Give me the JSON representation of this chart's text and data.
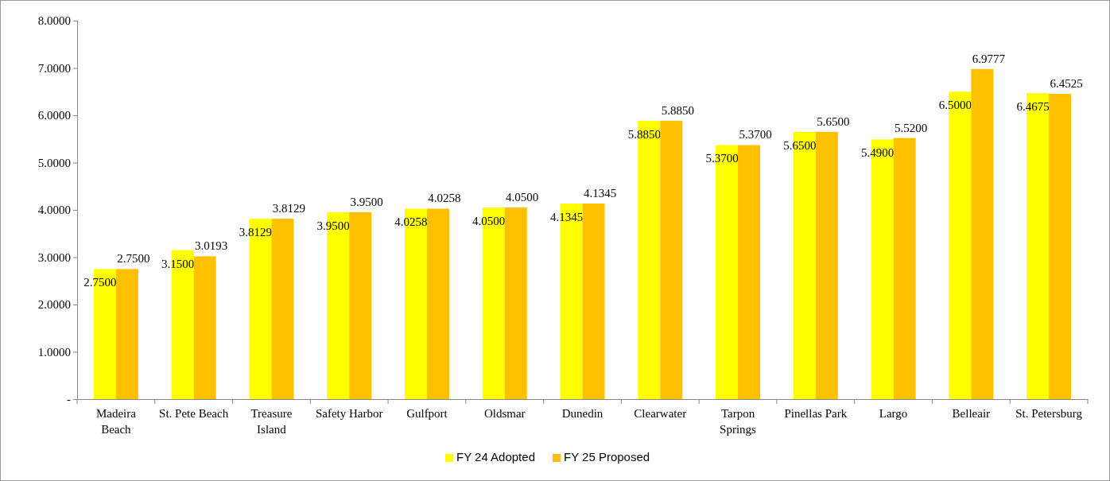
{
  "chart_data": {
    "type": "bar",
    "categories": [
      "Madeira Beach",
      "St. Pete Beach",
      "Treasure Island",
      "Safety Harbor",
      "Gulfport",
      "Oldsmar",
      "Dunedin",
      "Clearwater",
      "Tarpon Springs",
      "Pinellas Park",
      "Largo",
      "Belleair",
      "St. Petersburg"
    ],
    "series": [
      {
        "name": "FY 24 Adopted",
        "color": "#ffff00",
        "values": [
          2.75,
          3.15,
          3.8129,
          3.95,
          4.0258,
          4.05,
          4.1345,
          5.885,
          5.37,
          5.65,
          5.49,
          6.5,
          6.4675
        ],
        "value_labels": [
          "2.7500",
          "3.1500",
          "3.8129",
          "3.9500",
          "4.0258",
          "4.0500",
          "4.1345",
          "5.8850",
          "5.3700",
          "5.6500",
          "5.4900",
          "6.5000",
          "6.4675"
        ]
      },
      {
        "name": "FY 25 Proposed",
        "color": "#ffc000",
        "values": [
          2.75,
          3.0193,
          3.8129,
          3.95,
          4.0258,
          4.05,
          4.1345,
          5.885,
          5.37,
          5.65,
          5.52,
          6.9777,
          6.4525
        ],
        "value_labels": [
          "2.7500",
          "3.0193",
          "3.8129",
          "3.9500",
          "4.0258",
          "4.0500",
          "4.1345",
          "5.8850",
          "5.3700",
          "5.6500",
          "5.5200",
          "6.9777",
          "6.4525"
        ]
      }
    ],
    "ylim": [
      0,
      8
    ],
    "yticks": [
      {
        "value": 0,
        "label": "-"
      },
      {
        "value": 1,
        "label": "1.0000"
      },
      {
        "value": 2,
        "label": "2.0000"
      },
      {
        "value": 3,
        "label": "3.0000"
      },
      {
        "value": 4,
        "label": "4.0000"
      },
      {
        "value": 5,
        "label": "5.0000"
      },
      {
        "value": 6,
        "label": "6.0000"
      },
      {
        "value": 7,
        "label": "7.0000"
      },
      {
        "value": 8,
        "label": "8.0000"
      }
    ],
    "legend": "bottom"
  }
}
